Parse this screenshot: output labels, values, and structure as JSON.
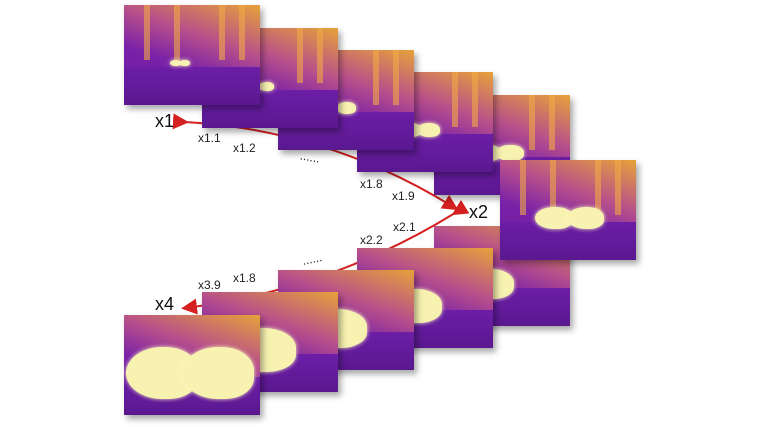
{
  "labels": {
    "x1": "x1",
    "x2": "x2",
    "x4": "x4"
  },
  "top_steps": [
    "x1.1",
    "x1.2",
    "x1.8",
    "x1.9"
  ],
  "bottom_steps": [
    "x2.1",
    "x2.2",
    "x1.8",
    "x3.9"
  ],
  "ellipsis": "......",
  "colors": {
    "arrow": "#d42020"
  }
}
